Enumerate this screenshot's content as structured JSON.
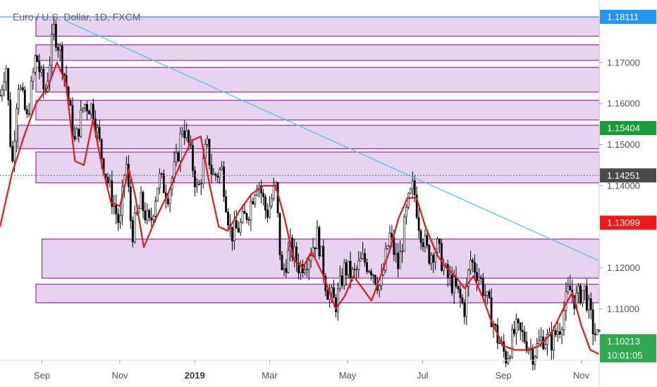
{
  "chart_data": {
    "type": "candlestick",
    "title": "Euro / U.S. Dollar, 1D, FXCM",
    "x_tick_labels": [
      "Sep",
      "Nov",
      "2019",
      "Mar",
      "May",
      "Jul",
      "Sep",
      "Nov"
    ],
    "x_tick_bold": [
      false,
      false,
      true,
      false,
      false,
      false,
      false,
      false
    ],
    "y_tick_labels": [
      "1.17000",
      "1.16000",
      "1.15000",
      "1.14000",
      "1.12000",
      "1.11000"
    ],
    "y_ticks": [
      1.17,
      1.16,
      1.15,
      1.14,
      1.12,
      1.11
    ],
    "ylim": [
      1.0975,
      1.1835
    ],
    "price_badges": [
      {
        "label": "1.18111",
        "value": 1.18111,
        "color": "#2196f3"
      },
      {
        "label": "1.15404",
        "value": 1.15404,
        "color": "#1a9b3a"
      },
      {
        "label": "1.14251",
        "value": 1.14251,
        "color": "#4a4a4a"
      },
      {
        "label": "1.13099",
        "value": 1.13099,
        "color": "#f01818"
      },
      {
        "label": "1.10213",
        "value": 1.10213,
        "color": "#2fa84f"
      }
    ],
    "countdown_label": "10:01:05",
    "zones": [
      {
        "from": 0.06,
        "to": 1.0,
        "top": 1.1811,
        "bottom": 1.1764
      },
      {
        "from": 0.06,
        "to": 1.0,
        "top": 1.1743,
        "bottom": 1.1705
      },
      {
        "from": 0.06,
        "to": 1.0,
        "top": 1.1688,
        "bottom": 1.1628
      },
      {
        "from": 0.06,
        "to": 1.0,
        "top": 1.1608,
        "bottom": 1.156
      },
      {
        "from": 0.03,
        "to": 1.0,
        "top": 1.1547,
        "bottom": 1.149
      },
      {
        "from": 0.06,
        "to": 1.0,
        "top": 1.1482,
        "bottom": 1.1407
      },
      {
        "from": 0.07,
        "to": 1.0,
        "top": 1.127,
        "bottom": 1.1175
      },
      {
        "from": 0.06,
        "to": 1.0,
        "top": 1.116,
        "bottom": 1.1115
      }
    ],
    "trendline": {
      "x1": 0.11,
      "y1": 1.1801,
      "x2": 1.0,
      "y2": 1.1217
    },
    "horizontal_level": 1.14251,
    "price_path": [
      [
        0.0,
        1.162
      ],
      [
        0.01,
        1.17
      ],
      [
        0.02,
        1.144
      ],
      [
        0.03,
        1.166
      ],
      [
        0.045,
        1.156
      ],
      [
        0.06,
        1.172
      ],
      [
        0.075,
        1.162
      ],
      [
        0.09,
        1.178
      ],
      [
        0.1,
        1.173
      ],
      [
        0.11,
        1.165
      ],
      [
        0.125,
        1.15
      ],
      [
        0.14,
        1.16
      ],
      [
        0.155,
        1.159
      ],
      [
        0.17,
        1.147
      ],
      [
        0.185,
        1.138
      ],
      [
        0.2,
        1.13
      ],
      [
        0.21,
        1.147
      ],
      [
        0.22,
        1.128
      ],
      [
        0.235,
        1.136
      ],
      [
        0.25,
        1.13
      ],
      [
        0.265,
        1.142
      ],
      [
        0.28,
        1.138
      ],
      [
        0.295,
        1.146
      ],
      [
        0.305,
        1.155
      ],
      [
        0.315,
        1.15
      ],
      [
        0.33,
        1.138
      ],
      [
        0.345,
        1.15
      ],
      [
        0.355,
        1.142
      ],
      [
        0.37,
        1.144
      ],
      [
        0.385,
        1.128
      ],
      [
        0.4,
        1.13
      ],
      [
        0.415,
        1.134
      ],
      [
        0.43,
        1.142
      ],
      [
        0.445,
        1.133
      ],
      [
        0.46,
        1.14
      ],
      [
        0.47,
        1.118
      ],
      [
        0.485,
        1.125
      ],
      [
        0.5,
        1.12
      ],
      [
        0.515,
        1.123
      ],
      [
        0.53,
        1.128
      ],
      [
        0.545,
        1.115
      ],
      [
        0.56,
        1.111
      ],
      [
        0.575,
        1.12
      ],
      [
        0.59,
        1.118
      ],
      [
        0.605,
        1.122
      ],
      [
        0.62,
        1.12
      ],
      [
        0.635,
        1.115
      ],
      [
        0.65,
        1.128
      ],
      [
        0.665,
        1.12
      ],
      [
        0.68,
        1.135
      ],
      [
        0.69,
        1.14
      ],
      [
        0.7,
        1.13
      ],
      [
        0.715,
        1.123
      ],
      [
        0.73,
        1.125
      ],
      [
        0.745,
        1.118
      ],
      [
        0.76,
        1.115
      ],
      [
        0.775,
        1.11
      ],
      [
        0.785,
        1.122
      ],
      [
        0.8,
        1.118
      ],
      [
        0.815,
        1.111
      ],
      [
        0.83,
        1.103
      ],
      [
        0.845,
        1.098
      ],
      [
        0.86,
        1.105
      ],
      [
        0.875,
        1.103
      ],
      [
        0.89,
        1.099
      ],
      [
        0.905,
        1.103
      ],
      [
        0.92,
        1.102
      ],
      [
        0.935,
        1.106
      ],
      [
        0.95,
        1.115
      ],
      [
        0.96,
        1.112
      ],
      [
        0.975,
        1.115
      ],
      [
        0.99,
        1.105
      ],
      [
        1.0,
        1.102
      ]
    ],
    "ma_path": [
      [
        0.0,
        1.13
      ],
      [
        0.02,
        1.143
      ],
      [
        0.04,
        1.152
      ],
      [
        0.06,
        1.16
      ],
      [
        0.08,
        1.164
      ],
      [
        0.095,
        1.17
      ],
      [
        0.11,
        1.165
      ],
      [
        0.125,
        1.146
      ],
      [
        0.14,
        1.145
      ],
      [
        0.155,
        1.156
      ],
      [
        0.17,
        1.145
      ],
      [
        0.185,
        1.136
      ],
      [
        0.2,
        1.135
      ],
      [
        0.215,
        1.144
      ],
      [
        0.225,
        1.138
      ],
      [
        0.24,
        1.125
      ],
      [
        0.26,
        1.132
      ],
      [
        0.28,
        1.138
      ],
      [
        0.3,
        1.145
      ],
      [
        0.32,
        1.151
      ],
      [
        0.335,
        1.152
      ],
      [
        0.35,
        1.14
      ],
      [
        0.365,
        1.13
      ],
      [
        0.38,
        1.129
      ],
      [
        0.4,
        1.134
      ],
      [
        0.42,
        1.138
      ],
      [
        0.44,
        1.14
      ],
      [
        0.46,
        1.14
      ],
      [
        0.475,
        1.132
      ],
      [
        0.49,
        1.122
      ],
      [
        0.505,
        1.12
      ],
      [
        0.52,
        1.124
      ],
      [
        0.54,
        1.118
      ],
      [
        0.56,
        1.11
      ],
      [
        0.575,
        1.113
      ],
      [
        0.59,
        1.118
      ],
      [
        0.605,
        1.115
      ],
      [
        0.62,
        1.112
      ],
      [
        0.635,
        1.118
      ],
      [
        0.65,
        1.124
      ],
      [
        0.665,
        1.132
      ],
      [
        0.68,
        1.137
      ],
      [
        0.695,
        1.137
      ],
      [
        0.71,
        1.13
      ],
      [
        0.73,
        1.123
      ],
      [
        0.745,
        1.12
      ],
      [
        0.76,
        1.118
      ],
      [
        0.775,
        1.115
      ],
      [
        0.79,
        1.118
      ],
      [
        0.805,
        1.113
      ],
      [
        0.82,
        1.107
      ],
      [
        0.84,
        1.101
      ],
      [
        0.86,
        1.1
      ],
      [
        0.88,
        1.1
      ],
      [
        0.9,
        1.101
      ],
      [
        0.92,
        1.104
      ],
      [
        0.94,
        1.11
      ],
      [
        0.955,
        1.114
      ],
      [
        0.97,
        1.106
      ],
      [
        0.985,
        1.1
      ],
      [
        1.0,
        1.099
      ]
    ]
  }
}
